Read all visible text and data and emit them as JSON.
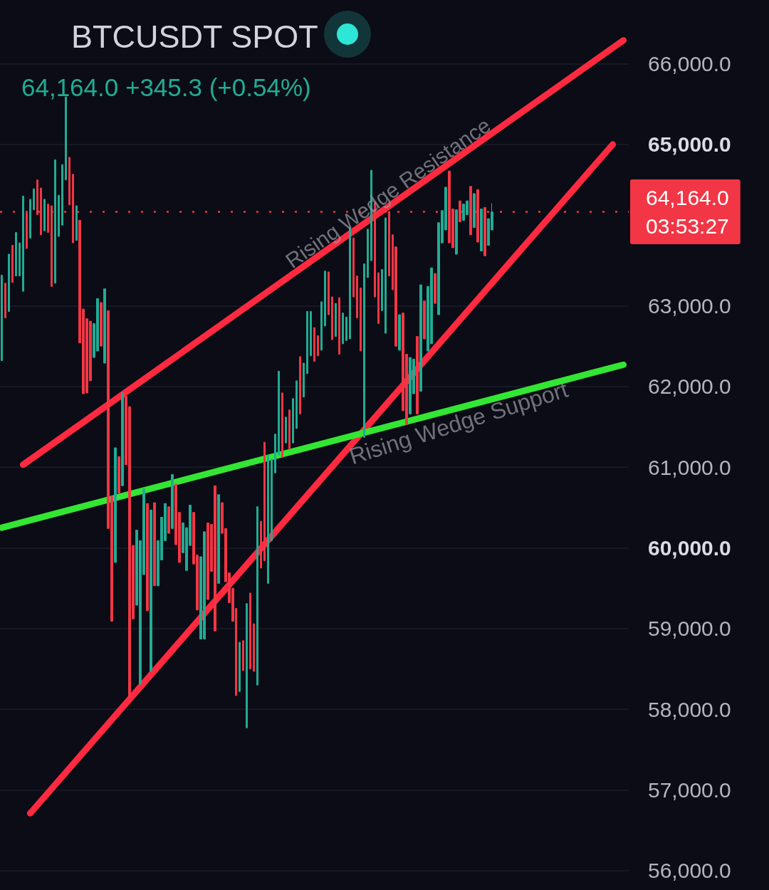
{
  "chart_data": {
    "type": "candlestick",
    "title": "BTCUSDT SPOT",
    "subtitle": "64,164.0 +345.3 (+0.54%)",
    "annotations": [
      "Rising Wedge Resistance",
      "Rising Wedge Support"
    ],
    "categories": [
      null,
      null,
      null,
      null,
      null,
      null,
      null,
      null,
      null,
      null,
      null,
      null,
      null,
      null,
      null,
      null,
      null,
      null,
      null,
      null,
      null,
      null,
      null,
      null,
      null,
      null,
      null,
      null,
      null,
      null,
      null,
      null,
      null,
      null,
      null,
      null,
      null,
      null,
      null,
      null,
      null,
      null,
      null,
      null,
      null,
      null,
      null,
      null,
      null,
      null,
      null,
      null,
      null,
      null,
      null,
      null,
      null,
      null,
      null,
      null,
      null,
      null,
      null,
      null,
      null,
      null,
      null,
      null,
      null,
      null,
      null,
      null,
      null,
      null,
      null,
      null,
      null,
      null,
      null,
      null,
      null,
      null,
      null,
      null,
      null,
      null,
      null,
      null,
      null,
      null,
      null,
      null,
      null,
      null,
      null,
      null,
      null,
      null,
      null,
      null,
      null,
      null,
      null,
      null,
      null,
      null,
      null,
      null,
      null,
      null,
      null,
      null,
      null,
      null,
      null,
      null,
      null,
      null,
      null,
      null,
      null,
      null,
      null,
      null,
      null,
      null,
      null,
      null,
      null,
      null,
      null,
      null,
      null,
      null,
      null,
      null,
      null,
      null,
      null,
      null,
      null,
      null,
      null,
      null,
      null,
      null,
      null,
      null,
      null,
      null,
      null,
      null,
      null,
      null,
      null,
      null,
      null,
      null,
      null,
      null,
      null,
      null,
      null,
      null,
      null,
      null,
      null,
      null,
      null,
      null,
      null,
      null,
      null,
      null,
      null,
      null,
      null
    ],
    "ohlc": [
      [
        62320,
        63380,
        62320,
        63380
      ],
      [
        63280,
        63280,
        62850,
        62850
      ],
      [
        62930,
        63640,
        62930,
        63640
      ],
      [
        63750,
        63750,
        63290,
        63290
      ],
      [
        63370,
        63910,
        63370,
        63910
      ],
      [
        63370,
        63780,
        63370,
        63780
      ],
      [
        63180,
        64360,
        63180,
        64360
      ],
      [
        64150,
        64150,
        63710,
        63710
      ],
      [
        63840,
        64320,
        63840,
        64320
      ],
      [
        64190,
        64450,
        64190,
        64450
      ],
      [
        64560,
        64560,
        64130,
        64130
      ],
      [
        64460,
        64460,
        63880,
        63880
      ],
      [
        63930,
        64320,
        63930,
        64320
      ],
      [
        64260,
        64260,
        63910,
        63910
      ],
      [
        64240,
        64240,
        63240,
        63240
      ],
      [
        63280,
        64810,
        63280,
        64810
      ],
      [
        63860,
        64370,
        63860,
        64370
      ],
      [
        64000,
        64750,
        64000,
        64750
      ],
      [
        64560,
        65590,
        64560,
        65590
      ],
      [
        64840,
        64840,
        64250,
        64250
      ],
      [
        64630,
        64630,
        63780,
        63780
      ],
      [
        63810,
        64240,
        63810,
        64240
      ],
      [
        64060,
        64060,
        62540,
        62540
      ],
      [
        62960,
        62960,
        61910,
        61910
      ],
      [
        62840,
        62840,
        61920,
        61920
      ],
      [
        62810,
        62810,
        62070,
        62070
      ],
      [
        62360,
        62780,
        62360,
        62780
      ],
      [
        62440,
        63090,
        62440,
        63090
      ],
      [
        63040,
        63040,
        62500,
        62500
      ],
      [
        62290,
        63210,
        62290,
        63210
      ],
      [
        62940,
        62940,
        60240,
        60240
      ],
      [
        60640,
        60640,
        59090,
        59090
      ],
      [
        59820,
        61240,
        59820,
        61240
      ],
      [
        61130,
        61130,
        60680,
        60680
      ],
      [
        60770,
        61920,
        60770,
        61920
      ],
      [
        61880,
        61880,
        61030,
        61030
      ],
      [
        61750,
        61750,
        58150,
        58150
      ],
      [
        60030,
        60030,
        59120,
        59120
      ],
      [
        59290,
        60220,
        59290,
        60220
      ],
      [
        58310,
        60090,
        58310,
        60090
      ],
      [
        59670,
        60730,
        59670,
        60730
      ],
      [
        60550,
        60550,
        59220,
        59220
      ],
      [
        58470,
        60470,
        58470,
        60470
      ],
      [
        60560,
        60560,
        59530,
        59530
      ],
      [
        59530,
        60090,
        59530,
        60090
      ],
      [
        59850,
        60380,
        59850,
        60380
      ],
      [
        60090,
        60550,
        60090,
        60550
      ],
      [
        60510,
        60510,
        60180,
        60180
      ],
      [
        60240,
        60910,
        60240,
        60910
      ],
      [
        60790,
        60790,
        60040,
        60040
      ],
      [
        60440,
        60440,
        59820,
        59820
      ],
      [
        59940,
        60310,
        59940,
        60310
      ],
      [
        59720,
        60250,
        59720,
        60250
      ],
      [
        60030,
        60530,
        60030,
        60530
      ],
      [
        60440,
        60440,
        59800,
        59800
      ],
      [
        59910,
        59910,
        59230,
        59230
      ],
      [
        58870,
        59890,
        58870,
        59890
      ],
      [
        58870,
        60200,
        58870,
        60200
      ],
      [
        60310,
        60310,
        59360,
        59360
      ],
      [
        60290,
        60290,
        59710,
        59710
      ],
      [
        60770,
        60770,
        58970,
        58970
      ],
      [
        59560,
        60660,
        59560,
        60660
      ],
      [
        60560,
        60560,
        60180,
        60180
      ],
      [
        60240,
        60240,
        59580,
        59580
      ],
      [
        59690,
        59690,
        59320,
        59320
      ],
      [
        59500,
        59500,
        59090,
        59090
      ],
      [
        59250,
        59250,
        58170,
        58170
      ],
      [
        58220,
        58830,
        58220,
        58830
      ],
      [
        58850,
        58850,
        58480,
        58480
      ],
      [
        57770,
        59310,
        57770,
        59310
      ],
      [
        59440,
        59440,
        58500,
        58500
      ],
      [
        59060,
        59060,
        58470,
        58470
      ],
      [
        58300,
        60510,
        58300,
        60510
      ],
      [
        60330,
        60330,
        59750,
        59750
      ],
      [
        61310,
        61310,
        59840,
        59840
      ],
      [
        59560,
        61150,
        59560,
        61150
      ],
      [
        60090,
        61100,
        60090,
        61100
      ],
      [
        60930,
        61410,
        60930,
        61410
      ],
      [
        61150,
        62190,
        61150,
        62190
      ],
      [
        61920,
        61920,
        61120,
        61120
      ],
      [
        61300,
        61620,
        61300,
        61620
      ],
      [
        61710,
        61710,
        61220,
        61220
      ],
      [
        61300,
        61850,
        61300,
        61850
      ],
      [
        61480,
        62070,
        61480,
        62070
      ],
      [
        62370,
        62370,
        61660,
        61660
      ],
      [
        61870,
        62290,
        61870,
        62290
      ],
      [
        62160,
        62930,
        62160,
        62930
      ],
      [
        62380,
        62930,
        62380,
        62930
      ],
      [
        62730,
        62730,
        62310,
        62310
      ],
      [
        62630,
        62630,
        62380,
        62380
      ],
      [
        62450,
        63050,
        62450,
        63050
      ],
      [
        62750,
        63430,
        62750,
        63430
      ],
      [
        63420,
        63420,
        62890,
        62890
      ],
      [
        63110,
        63110,
        62580,
        62580
      ],
      [
        62620,
        63030,
        62620,
        63030
      ],
      [
        63100,
        63100,
        62400,
        62400
      ],
      [
        62530,
        62910,
        62530,
        62910
      ],
      [
        62570,
        62860,
        62570,
        62860
      ],
      [
        62590,
        63970,
        62590,
        63970
      ],
      [
        63840,
        63840,
        63110,
        63110
      ],
      [
        63370,
        63370,
        62850,
        62850
      ],
      [
        63220,
        63220,
        62440,
        62440
      ],
      [
        61370,
        63520,
        61370,
        63520
      ],
      [
        63350,
        63950,
        63350,
        63950
      ],
      [
        63560,
        64680,
        63560,
        64680
      ],
      [
        64280,
        64280,
        63110,
        63110
      ],
      [
        63410,
        63410,
        62780,
        62780
      ],
      [
        62940,
        63450,
        62940,
        63450
      ],
      [
        62660,
        64090,
        62660,
        64090
      ],
      [
        64170,
        64170,
        63370,
        63370
      ],
      [
        63880,
        63880,
        63200,
        63200
      ],
      [
        63730,
        63730,
        62500,
        62500
      ],
      [
        62450,
        62890,
        62450,
        62890
      ],
      [
        62910,
        62910,
        61700,
        61700
      ],
      [
        62400,
        62400,
        61530,
        61530
      ],
      [
        61660,
        62360,
        61660,
        62360
      ],
      [
        61910,
        62340,
        61910,
        62340
      ],
      [
        62620,
        62620,
        61660,
        61660
      ],
      [
        61940,
        63260,
        61940,
        63260
      ],
      [
        63060,
        63060,
        62590,
        62590
      ],
      [
        62440,
        63240,
        62440,
        63240
      ],
      [
        62530,
        63470,
        62530,
        63470
      ],
      [
        63400,
        63400,
        63030,
        63030
      ],
      [
        62890,
        64030,
        62890,
        64030
      ],
      [
        63780,
        64180,
        63780,
        64180
      ],
      [
        63940,
        64470,
        63940,
        64470
      ],
      [
        64670,
        64670,
        63780,
        63780
      ],
      [
        64200,
        64200,
        63720,
        63720
      ],
      [
        63640,
        64190,
        63640,
        64190
      ],
      [
        64300,
        64300,
        64040,
        64040
      ],
      [
        64060,
        64260,
        64060,
        64260
      ],
      [
        64130,
        64300,
        64130,
        64300
      ],
      [
        64480,
        64480,
        63880,
        63880
      ],
      [
        63970,
        64390,
        63970,
        64390
      ],
      [
        64440,
        64440,
        63790,
        63790
      ],
      [
        63680,
        64200,
        63680,
        64200
      ],
      [
        64220,
        64220,
        63620,
        63620
      ],
      [
        63750,
        64080,
        63750,
        64080
      ],
      [
        63940,
        64270,
        63940,
        64164
      ],
      null,
      null,
      null,
      null,
      null,
      null,
      null,
      null,
      null,
      null,
      null,
      null,
      null,
      null,
      null,
      null,
      null,
      null,
      null,
      null,
      null,
      null,
      null,
      null,
      null,
      null,
      null,
      null,
      null,
      null,
      null,
      null,
      null,
      null,
      null,
      null,
      null,
      null
    ],
    "colors": [
      "#22ab94",
      "#f23645",
      "#22ab94",
      "#f23645",
      "#22ab94",
      "#22ab94",
      "#22ab94",
      "#f23645",
      "#22ab94",
      "#22ab94",
      "#f23645",
      "#f23645",
      "#22ab94",
      "#f23645",
      "#f23645",
      "#22ab94",
      "#22ab94",
      "#22ab94",
      "#22ab94",
      "#f23645",
      "#f23645",
      "#22ab94",
      "#f23645",
      "#f23645",
      "#f23645",
      "#f23645",
      "#22ab94",
      "#22ab94",
      "#f23645",
      "#22ab94",
      "#f23645",
      "#f23645",
      "#22ab94",
      "#f23645",
      "#22ab94",
      "#f23645",
      "#f23645",
      "#f23645",
      "#22ab94",
      "#22ab94",
      "#22ab94",
      "#f23645",
      "#22ab94",
      "#f23645",
      "#22ab94",
      "#22ab94",
      "#22ab94",
      "#f23645",
      "#22ab94",
      "#f23645",
      "#f23645",
      "#22ab94",
      "#22ab94",
      "#22ab94",
      "#f23645",
      "#f23645",
      "#22ab94",
      "#22ab94",
      "#f23645",
      "#f23645",
      "#f23645",
      "#22ab94",
      "#f23645",
      "#f23645",
      "#f23645",
      "#f23645",
      "#f23645",
      "#22ab94",
      "#f23645",
      "#22ab94",
      "#f23645",
      "#f23645",
      "#22ab94",
      "#f23645",
      "#f23645",
      "#22ab94",
      "#22ab94",
      "#22ab94",
      "#22ab94",
      "#f23645",
      "#22ab94",
      "#f23645",
      "#22ab94",
      "#22ab94",
      "#f23645",
      "#22ab94",
      "#22ab94",
      "#22ab94",
      "#f23645",
      "#f23645",
      "#22ab94",
      "#22ab94",
      "#f23645",
      "#f23645",
      "#22ab94",
      "#f23645",
      "#22ab94",
      "#22ab94",
      "#22ab94",
      "#f23645",
      "#f23645",
      "#f23645",
      "#22ab94",
      "#22ab94",
      "#22ab94",
      "#f23645",
      "#f23645",
      "#22ab94",
      "#22ab94",
      "#f23645",
      "#f23645",
      "#f23645",
      "#22ab94",
      "#f23645",
      "#f23645",
      "#22ab94",
      "#22ab94",
      "#f23645",
      "#22ab94",
      "#f23645",
      "#22ab94",
      "#22ab94",
      "#f23645",
      "#22ab94",
      "#22ab94",
      "#22ab94",
      "#f23645",
      "#f23645",
      "#22ab94",
      "#f23645",
      "#22ab94",
      "#22ab94",
      "#f23645",
      "#22ab94",
      "#f23645",
      "#22ab94",
      "#f23645",
      "#22ab94",
      "#22ab94",
      null,
      null,
      null,
      null,
      null,
      null,
      null,
      null,
      null,
      null,
      null,
      null,
      null,
      null,
      null,
      null,
      null,
      null,
      null,
      null,
      null,
      null,
      null,
      null,
      null,
      null,
      null,
      null,
      null,
      null,
      null,
      null,
      null,
      null,
      null,
      null,
      null,
      null
    ],
    "series": [
      {
        "type": "line",
        "color": "#ff2a40",
        "values": [
          null,
          null,
          null,
          null,
          null,
          null,
          61030,
          null,
          null,
          null,
          null,
          null,
          null,
          null,
          null,
          null,
          null,
          null,
          null,
          null,
          null,
          null,
          null,
          null,
          null,
          null,
          null,
          null,
          null,
          null,
          null,
          null,
          null,
          null,
          null,
          null,
          null,
          null,
          null,
          null,
          null,
          null,
          null,
          null,
          null,
          null,
          null,
          null,
          null,
          null,
          null,
          null,
          null,
          null,
          null,
          null,
          null,
          null,
          null,
          null,
          null,
          null,
          null,
          null,
          null,
          null,
          null,
          null,
          null,
          null,
          null,
          null,
          null,
          null,
          null,
          null,
          null,
          null,
          null,
          null,
          null,
          null,
          null,
          null,
          null,
          null,
          null,
          null,
          null,
          null,
          null,
          null,
          null,
          null,
          null,
          null,
          null,
          null,
          null,
          null,
          null,
          null,
          null,
          null,
          null,
          null,
          null,
          null,
          null,
          null,
          null,
          null,
          null,
          null,
          null,
          null,
          null,
          null,
          null,
          null,
          null,
          null,
          null,
          null,
          null,
          null,
          null,
          null,
          null,
          null,
          null,
          null,
          null,
          null,
          null,
          null,
          null,
          null,
          null,
          null,
          null,
          null,
          null,
          null,
          null,
          null,
          null,
          null,
          null,
          null,
          null,
          null,
          null,
          null,
          null,
          null,
          null,
          null,
          null,
          null,
          null,
          null,
          null,
          null,
          null,
          null,
          null,
          null,
          null,
          null,
          null,
          null,
          null,
          null,
          null,
          66290,
          null
        ]
      },
      {
        "type": "line",
        "color": "#ff2a40",
        "values": [
          null,
          null,
          null,
          null,
          null,
          null,
          null,
          null,
          56710,
          null,
          null,
          null,
          null,
          null,
          null,
          null,
          null,
          null,
          null,
          null,
          null,
          null,
          null,
          null,
          null,
          null,
          null,
          null,
          null,
          null,
          null,
          null,
          null,
          null,
          null,
          null,
          null,
          null,
          null,
          null,
          null,
          null,
          null,
          null,
          null,
          null,
          null,
          null,
          null,
          null,
          null,
          null,
          null,
          null,
          null,
          null,
          null,
          null,
          null,
          null,
          null,
          null,
          null,
          null,
          null,
          null,
          null,
          null,
          null,
          null,
          null,
          null,
          null,
          null,
          null,
          null,
          null,
          null,
          null,
          null,
          null,
          null,
          null,
          null,
          null,
          null,
          null,
          null,
          null,
          null,
          null,
          null,
          null,
          null,
          null,
          null,
          null,
          null,
          null,
          null,
          null,
          null,
          null,
          null,
          null,
          null,
          null,
          null,
          null,
          null,
          null,
          null,
          null,
          null,
          null,
          null,
          null,
          null,
          null,
          null,
          null,
          null,
          null,
          null,
          null,
          null,
          null,
          null,
          null,
          null,
          null,
          null,
          null,
          null,
          null,
          null,
          null,
          null,
          null,
          null,
          null,
          null,
          null,
          null,
          null,
          null,
          null,
          null,
          null,
          null,
          null,
          null,
          null,
          null,
          null,
          null,
          null,
          null,
          null,
          null,
          null,
          null,
          null,
          null,
          null,
          null,
          null,
          null,
          null,
          null,
          null,
          null,
          65000,
          null,
          null,
          null,
          null
        ]
      },
      {
        "type": "line",
        "color": "#33e633",
        "values": [
          60250,
          null,
          null,
          null,
          null,
          null,
          null,
          null,
          null,
          null,
          null,
          null,
          null,
          null,
          null,
          null,
          null,
          null,
          null,
          null,
          null,
          null,
          null,
          null,
          null,
          null,
          null,
          null,
          null,
          null,
          null,
          null,
          null,
          null,
          null,
          null,
          null,
          null,
          null,
          null,
          null,
          null,
          null,
          null,
          null,
          null,
          null,
          null,
          null,
          null,
          null,
          null,
          null,
          null,
          null,
          null,
          null,
          null,
          null,
          null,
          null,
          null,
          null,
          null,
          null,
          null,
          null,
          null,
          null,
          null,
          null,
          null,
          null,
          null,
          null,
          null,
          null,
          null,
          null,
          null,
          null,
          null,
          null,
          null,
          null,
          null,
          null,
          null,
          null,
          null,
          null,
          null,
          null,
          null,
          null,
          null,
          null,
          null,
          null,
          null,
          null,
          null,
          null,
          null,
          null,
          null,
          null,
          null,
          null,
          null,
          null,
          null,
          null,
          null,
          null,
          null,
          null,
          null,
          null,
          null,
          null,
          null,
          null,
          null,
          null,
          null,
          null,
          null,
          null,
          null,
          null,
          null,
          null,
          null,
          null,
          null,
          null,
          null,
          null,
          null,
          null,
          null,
          null,
          null,
          null,
          null,
          null,
          null,
          null,
          null,
          null,
          null,
          null,
          null,
          null,
          null,
          null,
          null,
          null,
          null,
          null,
          null,
          null,
          null,
          null,
          null,
          null,
          null,
          null,
          null,
          null,
          null,
          null,
          null,
          null,
          62270,
          null
        ]
      }
    ],
    "ylim": [
      55760,
      66790
    ],
    "yticks": [
      {
        "value": 56000,
        "label": "56,000.0"
      },
      {
        "value": 57000,
        "label": "57,000.0"
      },
      {
        "value": 58000,
        "label": "58,000.0"
      },
      {
        "value": 59000,
        "label": "59,000.0"
      },
      {
        "value": 60000,
        "label": "60,000.0"
      },
      {
        "value": 61000,
        "label": "61,000.0"
      },
      {
        "value": 62000,
        "label": "62,000.0"
      },
      {
        "value": 63000,
        "label": "63,000.0"
      },
      {
        "value": 65000,
        "label": "65,000.0"
      },
      {
        "value": 66000,
        "label": "66,000.0"
      }
    ],
    "ref_lines": [
      {
        "axis": "y",
        "value": 64164,
        "label": "64,164.0 03:53:27",
        "color": "#f23645",
        "line_style": "dotted"
      }
    ],
    "grid": "y",
    "tick_labels": "y"
  }
}
